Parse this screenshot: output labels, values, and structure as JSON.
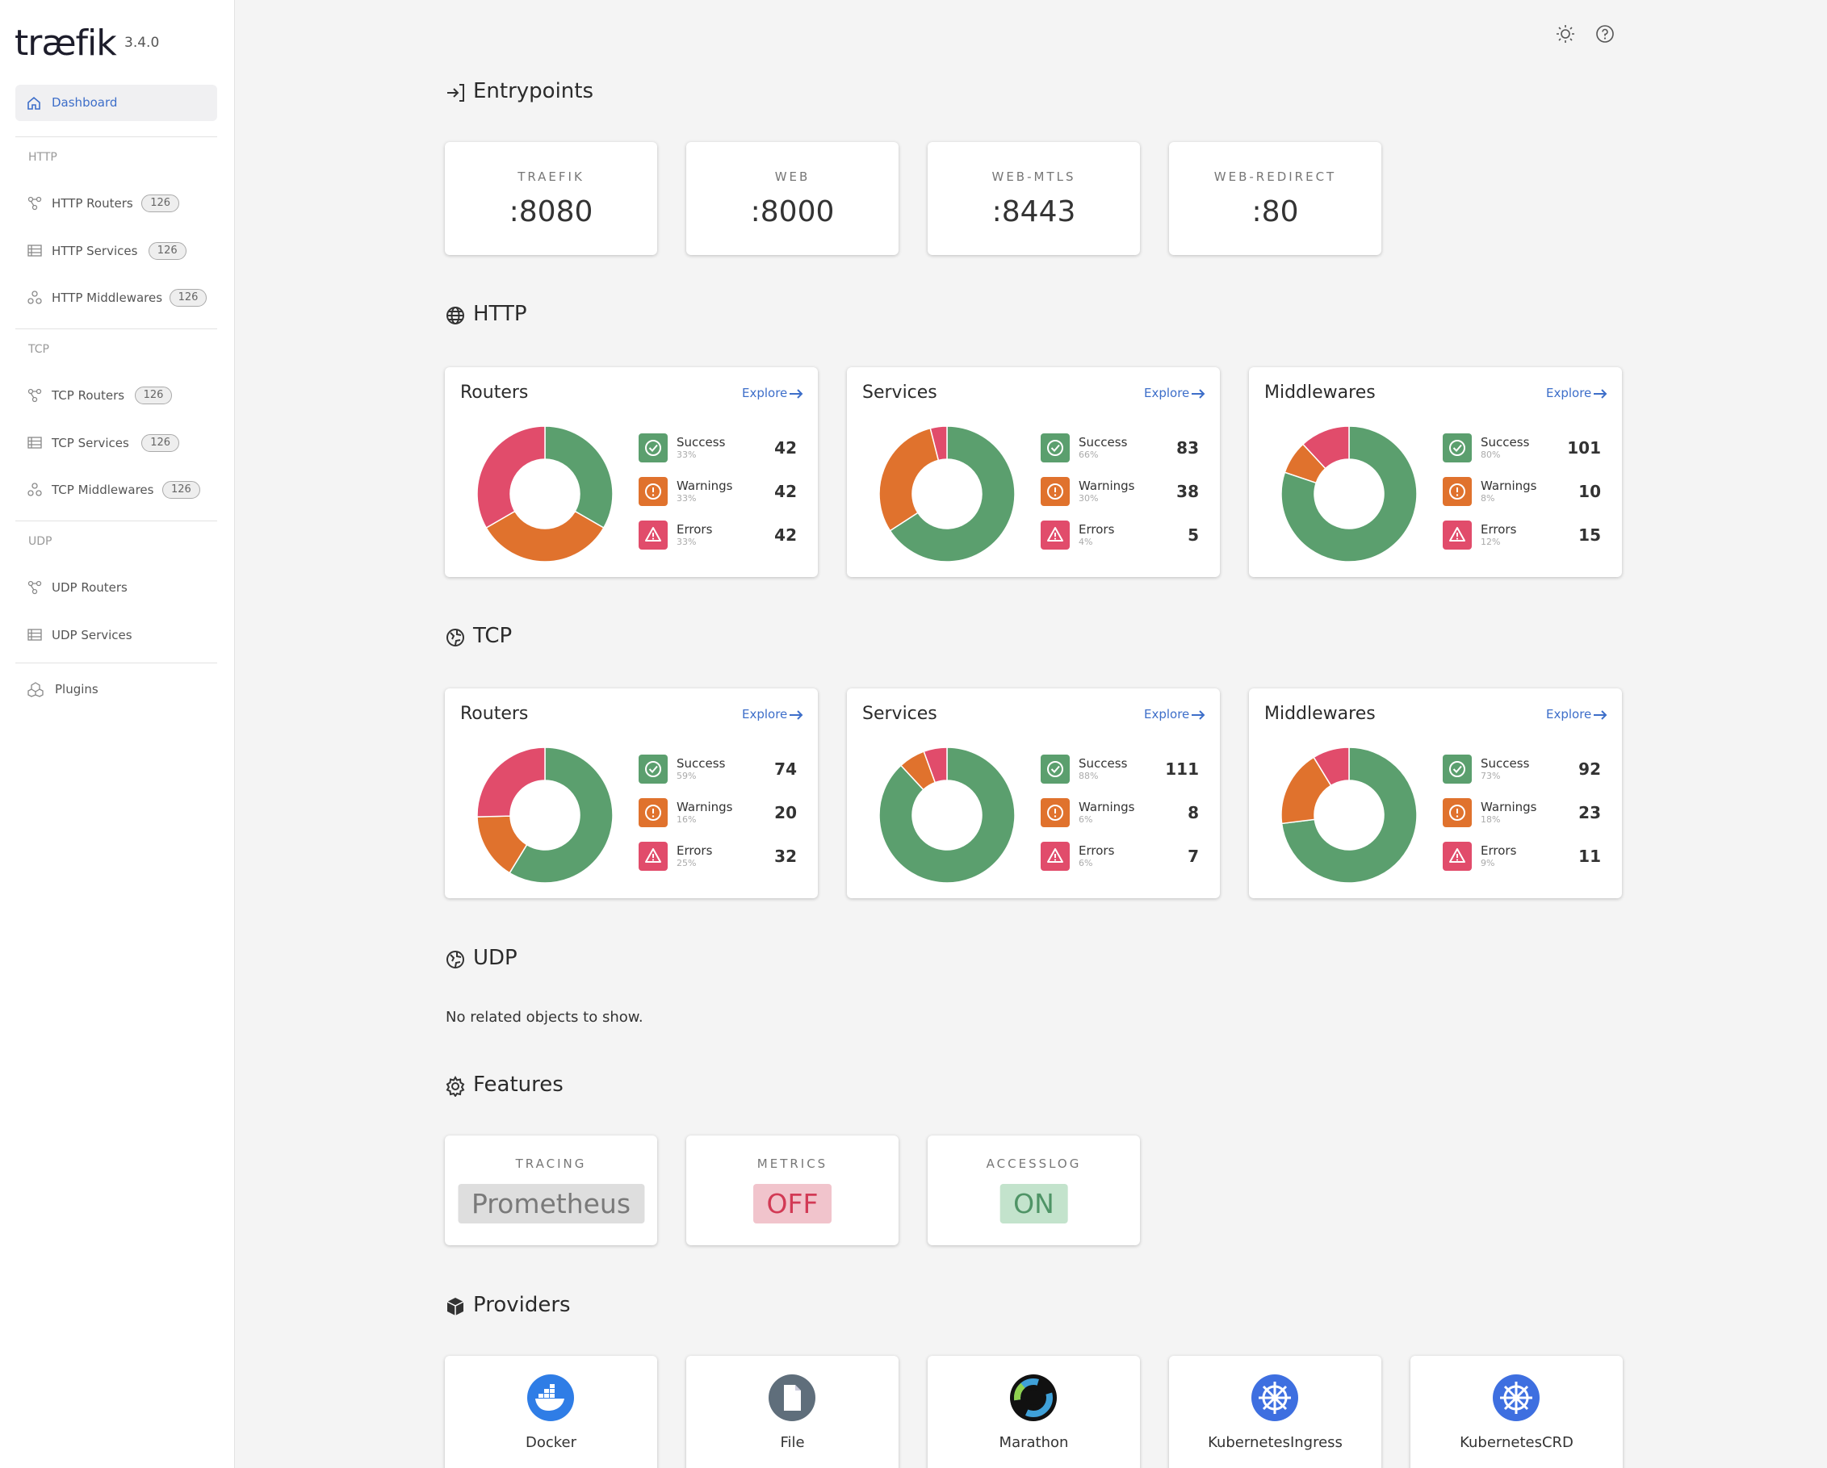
{
  "sidebar": {
    "logo": "træfik",
    "version": "3.4.0",
    "dashboard": "Dashboard",
    "groups": [
      {
        "title": "HTTP",
        "items": [
          {
            "label": "HTTP Routers",
            "count": 126
          },
          {
            "label": "HTTP Services",
            "count": 126
          },
          {
            "label": "HTTP Middlewares",
            "count": 126
          }
        ]
      },
      {
        "title": "TCP",
        "items": [
          {
            "label": "TCP Routers",
            "count": 126
          },
          {
            "label": "TCP Services",
            "count": 126
          },
          {
            "label": "TCP Middlewares",
            "count": 126
          }
        ]
      },
      {
        "title": "UDP",
        "items": [
          {
            "label": "UDP Routers"
          },
          {
            "label": "UDP Services"
          }
        ]
      }
    ],
    "plugins": "Plugins"
  },
  "entrypoints": {
    "title": "Entrypoints",
    "items": [
      {
        "name": "TRAEFIK",
        "address": ":8080"
      },
      {
        "name": "WEB",
        "address": ":8000"
      },
      {
        "name": "WEB-MTLS",
        "address": ":8443"
      },
      {
        "name": "WEB-REDIRECT",
        "address": ":80"
      }
    ]
  },
  "http": {
    "title": "HTTP",
    "cards": [
      {
        "title": "Routers",
        "explore": "Explore",
        "stats": [
          {
            "label": "Success",
            "percent": "33%",
            "count": 42
          },
          {
            "label": "Warnings",
            "percent": "33%",
            "count": 42
          },
          {
            "label": "Errors",
            "percent": "33%",
            "count": 42
          }
        ]
      },
      {
        "title": "Services",
        "explore": "Explore",
        "stats": [
          {
            "label": "Success",
            "percent": "66%",
            "count": 83
          },
          {
            "label": "Warnings",
            "percent": "30%",
            "count": 38
          },
          {
            "label": "Errors",
            "percent": "4%",
            "count": 5
          }
        ]
      },
      {
        "title": "Middlewares",
        "explore": "Explore",
        "stats": [
          {
            "label": "Success",
            "percent": "80%",
            "count": 101
          },
          {
            "label": "Warnings",
            "percent": "8%",
            "count": 10
          },
          {
            "label": "Errors",
            "percent": "12%",
            "count": 15
          }
        ]
      }
    ]
  },
  "tcp": {
    "title": "TCP",
    "cards": [
      {
        "title": "Routers",
        "explore": "Explore",
        "stats": [
          {
            "label": "Success",
            "percent": "59%",
            "count": 74
          },
          {
            "label": "Warnings",
            "percent": "16%",
            "count": 20
          },
          {
            "label": "Errors",
            "percent": "25%",
            "count": 32
          }
        ]
      },
      {
        "title": "Services",
        "explore": "Explore",
        "stats": [
          {
            "label": "Success",
            "percent": "88%",
            "count": 111
          },
          {
            "label": "Warnings",
            "percent": "6%",
            "count": 8
          },
          {
            "label": "Errors",
            "percent": "6%",
            "count": 7
          }
        ]
      },
      {
        "title": "Middlewares",
        "explore": "Explore",
        "stats": [
          {
            "label": "Success",
            "percent": "73%",
            "count": 92
          },
          {
            "label": "Warnings",
            "percent": "18%",
            "count": 23
          },
          {
            "label": "Errors",
            "percent": "9%",
            "count": 11
          }
        ]
      }
    ]
  },
  "udp": {
    "title": "UDP",
    "empty": "No related objects to show."
  },
  "features": {
    "title": "Features",
    "items": [
      {
        "name": "TRACING",
        "value": "Prometheus",
        "color": "#7a7a7a",
        "background": "#dedede"
      },
      {
        "name": "METRICS",
        "value": "OFF",
        "color": "#d23a55",
        "background": "#f1c4cc"
      },
      {
        "name": "ACCESSLOG",
        "value": "ON",
        "color": "#4f9466",
        "background": "#c3e3cc"
      }
    ]
  },
  "providers": {
    "title": "Providers",
    "items": [
      "Docker",
      "File",
      "Marathon",
      "KubernetesIngress",
      "KubernetesCRD"
    ]
  }
}
